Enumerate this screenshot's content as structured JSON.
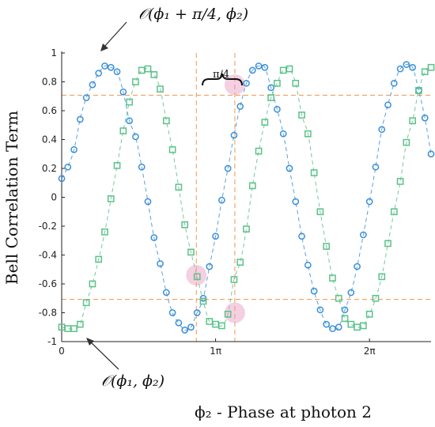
{
  "chart_data": {
    "type": "scatter",
    "xlabel": "ϕ₂ - Phase at photon 2",
    "ylabel": "Bell Correlation Term",
    "xlim": [
      0,
      2.4
    ],
    "ylim": [
      -1,
      1
    ],
    "x_ticks": [
      {
        "value": 0,
        "label": "0"
      },
      {
        "value": 1,
        "label": "1π"
      },
      {
        "value": 2,
        "label": "2π"
      }
    ],
    "y_ticks": [
      {
        "value": 1,
        "label": "1"
      },
      {
        "value": 0.8,
        "label": "0.8"
      },
      {
        "value": 0.6,
        "label": "0.6"
      },
      {
        "value": 0.4,
        "label": "0.4"
      },
      {
        "value": 0.2,
        "label": "0.2"
      },
      {
        "value": 0,
        "label": "0"
      },
      {
        "value": -0.2,
        "label": "-0.2"
      },
      {
        "value": -0.4,
        "label": "-0.4"
      },
      {
        "value": -0.6,
        "label": "-0.6"
      },
      {
        "value": -0.8,
        "label": "-0.8"
      },
      {
        "value": -1,
        "label": "-1"
      }
    ],
    "series": [
      {
        "marker": "circle",
        "color": "#3a8fd9",
        "x": [
          0.0,
          0.04,
          0.08,
          0.12,
          0.16,
          0.2,
          0.24,
          0.28,
          0.32,
          0.36,
          0.4,
          0.44,
          0.48,
          0.52,
          0.56,
          0.6,
          0.64,
          0.68,
          0.72,
          0.76,
          0.8,
          0.84,
          0.88,
          0.92,
          0.96,
          1.0,
          1.04,
          1.08,
          1.12,
          1.16,
          1.2,
          1.24,
          1.28,
          1.32,
          1.36,
          1.4,
          1.44,
          1.48,
          1.52,
          1.56,
          1.6,
          1.64,
          1.68,
          1.72,
          1.76,
          1.8,
          1.84,
          1.88,
          1.92,
          1.96,
          2.0,
          2.04,
          2.08,
          2.12,
          2.16,
          2.2,
          2.24,
          2.28,
          2.32,
          2.36,
          2.4
        ],
        "y": [
          0.13,
          0.21,
          0.33,
          0.54,
          0.69,
          0.78,
          0.86,
          0.91,
          0.9,
          0.87,
          0.73,
          0.53,
          0.42,
          0.21,
          -0.03,
          -0.28,
          -0.46,
          -0.66,
          -0.8,
          -0.87,
          -0.92,
          -0.9,
          -0.8,
          -0.7,
          -0.48,
          -0.27,
          -0.02,
          0.2,
          0.43,
          0.63,
          0.79,
          0.88,
          0.91,
          0.9,
          0.76,
          0.61,
          0.44,
          0.2,
          -0.03,
          -0.27,
          -0.47,
          -0.65,
          -0.78,
          -0.88,
          -0.91,
          -0.9,
          -0.78,
          -0.66,
          -0.48,
          -0.26,
          -0.03,
          0.21,
          0.47,
          0.64,
          0.79,
          0.89,
          0.92,
          0.9,
          0.74,
          0.55,
          0.3
        ]
      },
      {
        "marker": "square",
        "color": "#5bc28a",
        "x": [
          0.0,
          0.04,
          0.08,
          0.12,
          0.16,
          0.2,
          0.24,
          0.28,
          0.32,
          0.36,
          0.4,
          0.44,
          0.48,
          0.52,
          0.56,
          0.6,
          0.64,
          0.68,
          0.72,
          0.76,
          0.8,
          0.84,
          0.88,
          0.92,
          0.96,
          1.0,
          1.04,
          1.08,
          1.12,
          1.16,
          1.2,
          1.24,
          1.28,
          1.32,
          1.36,
          1.4,
          1.44,
          1.48,
          1.52,
          1.56,
          1.6,
          1.64,
          1.68,
          1.72,
          1.76,
          1.8,
          1.84,
          1.88,
          1.92,
          1.96,
          2.0,
          2.04,
          2.08,
          2.12,
          2.16,
          2.2,
          2.24,
          2.28,
          2.32,
          2.36,
          2.4
        ],
        "y": [
          -0.9,
          -0.91,
          -0.91,
          -0.88,
          -0.73,
          -0.6,
          -0.43,
          -0.24,
          -0.01,
          0.22,
          0.46,
          0.66,
          0.8,
          0.88,
          0.89,
          0.85,
          0.75,
          0.53,
          0.33,
          0.07,
          -0.19,
          -0.38,
          -0.55,
          -0.72,
          -0.86,
          -0.88,
          -0.89,
          -0.81,
          -0.57,
          -0.45,
          -0.22,
          0.08,
          0.32,
          0.52,
          0.69,
          0.79,
          0.88,
          0.89,
          0.79,
          0.57,
          0.44,
          0.17,
          -0.1,
          -0.34,
          -0.56,
          -0.7,
          -0.84,
          -0.88,
          -0.9,
          -0.89,
          -0.81,
          -0.7,
          -0.55,
          -0.32,
          -0.1,
          0.11,
          0.38,
          0.53,
          0.74,
          0.87,
          0.9
        ]
      }
    ],
    "reference_lines": {
      "horizontal": [
        0.707,
        -0.707
      ],
      "vertical": [
        0.875,
        1.125
      ],
      "color": "#f0a15e"
    },
    "highlights": [
      {
        "x": 1.125,
        "y": 0.78
      },
      {
        "x": 0.875,
        "y": -0.54
      },
      {
        "x": 1.125,
        "y": -0.8
      }
    ],
    "annotations": {
      "top_label": "𝒪(ϕ₁ + π/4, ϕ₂)",
      "bottom_label": "𝒪(ϕ₁, ϕ₂)",
      "bracket_label": "π/4"
    }
  }
}
